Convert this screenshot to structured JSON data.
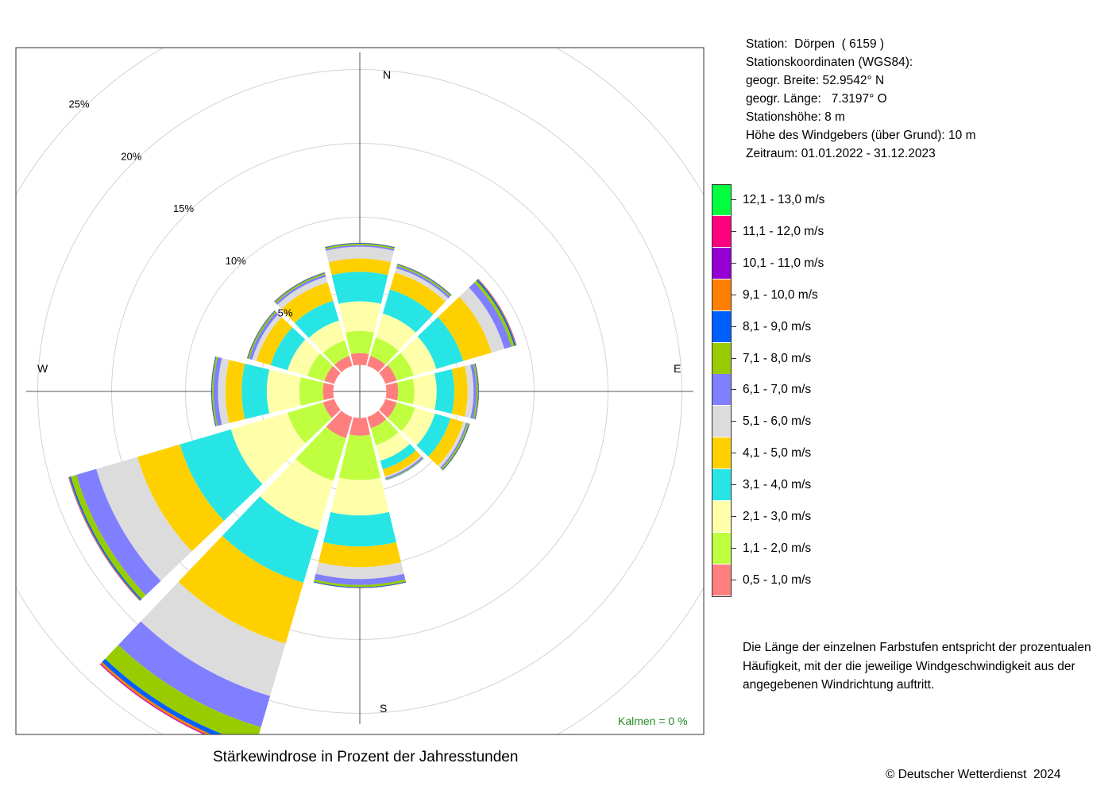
{
  "station_info": {
    "line1": "Station:  Dörpen  ( 6159 )",
    "line2": "Stationskoordinaten (WGS84):",
    "line3": "geogr. Breite: 52.9542° N",
    "line4": "geogr. Länge:   7.3197° O",
    "line5": "Stationshöhe: 8 m",
    "line6": "Höhe des Windgebers (über Grund): 10 m",
    "line7": "Zeitraum: 01.01.2022 - 31.12.2023"
  },
  "note": {
    "line1": "Die Länge der einzelnen Farbstufen entspricht der prozentualen",
    "line2": "Häufigkeit, mit der die jeweilige Windgeschwindigkeit aus der",
    "line3": "angegebenen Windrichtung auftritt."
  },
  "caption": "Stärkewindrose in Prozent der Jahresstunden",
  "copyright": "© Deutscher Wetterdienst  2024",
  "calm_label": "Kalmen  =  0 %",
  "colors": {
    "calm_text": "#228b22",
    "grid_circle": "#d3d3d3",
    "axis": "#555555"
  },
  "chart_data": {
    "type": "wind_rose",
    "directions": [
      "N",
      "NNE",
      "ENE",
      "E",
      "ESE",
      "SSE",
      "S",
      "SSW",
      "WSW",
      "W",
      "WNW",
      "NNW"
    ],
    "direction_angles_deg": [
      0,
      30,
      60,
      90,
      120,
      150,
      180,
      210,
      240,
      270,
      300,
      330
    ],
    "compass_labels": [
      "N",
      "E",
      "S",
      "W"
    ],
    "radial_ticks": [
      {
        "value": 5,
        "label": "5%"
      },
      {
        "value": 10,
        "label": "10%"
      },
      {
        "value": 15,
        "label": "15%"
      },
      {
        "value": 20,
        "label": "20%"
      },
      {
        "value": 25,
        "label": "25%"
      }
    ],
    "inner_offset_percent": 1.8,
    "max_percent": 27.5,
    "classes": [
      {
        "label": "0,5 - 1,0 m/s",
        "color": "#ff7f7f"
      },
      {
        "label": "1,1 - 2,0 m/s",
        "color": "#bfff3f"
      },
      {
        "label": "2,1 - 3,0 m/s",
        "color": "#ffffaa"
      },
      {
        "label": "3,1 - 4,0 m/s",
        "color": "#28e5e5"
      },
      {
        "label": "4,1 - 5,0 m/s",
        "color": "#ffd000"
      },
      {
        "label": "5,1 - 6,0 m/s",
        "color": "#dcdcdc"
      },
      {
        "label": "6,1 - 7,0 m/s",
        "color": "#7f7fff"
      },
      {
        "label": "7,1 - 8,0 m/s",
        "color": "#99cc00"
      },
      {
        "label": "8,1 - 9,0 m/s",
        "color": "#005fff"
      },
      {
        "label": "9,1 - 10,0 m/s",
        "color": "#ff8000"
      },
      {
        "label": "10,1 - 11,0 m/s",
        "color": "#9400d3"
      },
      {
        "label": "11,1 - 12,0 m/s",
        "color": "#ff007f"
      },
      {
        "label": "12,1 - 13,0 m/s",
        "color": "#00ff3f"
      }
    ],
    "series": [
      {
        "direction": "N",
        "values": [
          0.8,
          1.5,
          2.0,
          2.0,
          0.9,
          0.8,
          0.1,
          0.1,
          0.05,
          0.02,
          0.0,
          0.0,
          0.0
        ]
      },
      {
        "direction": "NNE",
        "values": [
          0.7,
          1.3,
          1.7,
          1.7,
          1.2,
          0.3,
          0.15,
          0.1,
          0.05,
          0.02,
          0.0,
          0.0,
          0.0
        ]
      },
      {
        "direction": "ENE",
        "values": [
          0.8,
          1.2,
          1.6,
          1.9,
          2.0,
          0.9,
          0.5,
          0.2,
          0.1,
          0.05,
          0.02,
          0.0,
          0.0
        ]
      },
      {
        "direction": "E",
        "values": [
          0.8,
          1.1,
          1.5,
          1.2,
          0.9,
          0.4,
          0.2,
          0.1,
          0.05,
          0.02,
          0.0,
          0.0,
          0.0
        ]
      },
      {
        "direction": "ESE",
        "values": [
          0.8,
          1.3,
          1.4,
          1.1,
          0.9,
          0.2,
          0.1,
          0.1,
          0.05,
          0.02,
          0.0,
          0.0,
          0.0
        ]
      },
      {
        "direction": "SSE",
        "values": [
          0.8,
          1.2,
          1.1,
          0.6,
          0.5,
          0.1,
          0.1,
          0.05,
          0.02,
          0.0,
          0.0,
          0.0,
          0.0
        ]
      },
      {
        "direction": "S",
        "values": [
          1.2,
          3.0,
          2.4,
          2.1,
          1.4,
          0.8,
          0.4,
          0.15,
          0.05,
          0.02,
          0.0,
          0.0,
          0.0
        ]
      },
      {
        "direction": "SSW",
        "values": [
          1.5,
          3.0,
          3.5,
          3.7,
          4.3,
          3.7,
          2.2,
          1.3,
          0.3,
          0.15,
          0.05,
          0.02,
          0.0
        ]
      },
      {
        "direction": "WSW",
        "values": [
          0.8,
          2.5,
          4.0,
          3.6,
          3.0,
          2.9,
          1.4,
          0.4,
          0.1,
          0.05,
          0.02,
          0.0,
          0.0
        ]
      },
      {
        "direction": "W",
        "values": [
          0.7,
          1.6,
          2.2,
          1.7,
          1.1,
          0.5,
          0.3,
          0.1,
          0.05,
          0.02,
          0.0,
          0.0,
          0.0
        ]
      },
      {
        "direction": "WNW",
        "values": [
          0.7,
          1.2,
          1.4,
          1.2,
          1.0,
          0.3,
          0.2,
          0.1,
          0.05,
          0.02,
          0.0,
          0.0,
          0.0
        ]
      },
      {
        "direction": "NNW",
        "values": [
          0.7,
          1.1,
          1.4,
          1.4,
          1.3,
          0.4,
          0.15,
          0.1,
          0.05,
          0.02,
          0.0,
          0.0,
          0.0
        ]
      }
    ]
  }
}
